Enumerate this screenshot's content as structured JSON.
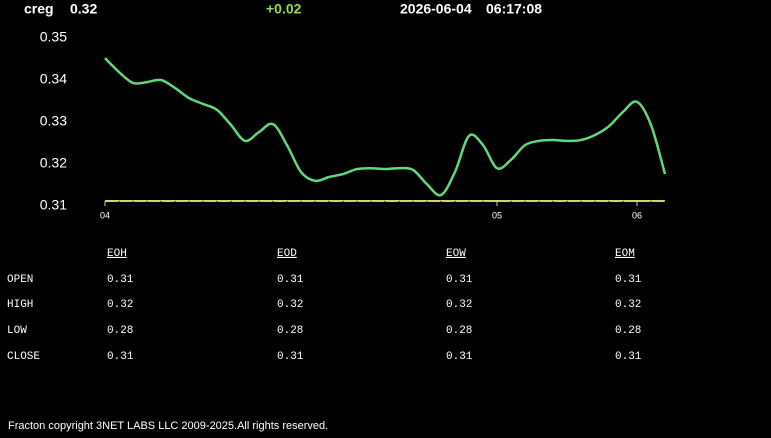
{
  "header": {
    "symbol": "creg",
    "price": "0.32",
    "change": "+0.02",
    "date": "2026-06-04",
    "time": "06:17:08"
  },
  "chart_data": {
    "type": "line",
    "color": "#5fd97a",
    "x": [
      0,
      1,
      2,
      3,
      4,
      5,
      6,
      7,
      8,
      9,
      10,
      11,
      12,
      13,
      14,
      15,
      16,
      17,
      18,
      19,
      20,
      21,
      22,
      23,
      24,
      25,
      26,
      27,
      28,
      29,
      30,
      31,
      32,
      33,
      34,
      35,
      36,
      37,
      38,
      39,
      40
    ],
    "values": [
      0.3452,
      0.3419,
      0.3393,
      0.3395,
      0.34,
      0.3381,
      0.3357,
      0.3343,
      0.3329,
      0.3293,
      0.3255,
      0.3276,
      0.3295,
      0.3245,
      0.3181,
      0.316,
      0.3169,
      0.3176,
      0.3188,
      0.319,
      0.3188,
      0.319,
      0.3186,
      0.3152,
      0.3126,
      0.3181,
      0.3267,
      0.3245,
      0.319,
      0.321,
      0.3245,
      0.3255,
      0.3257,
      0.3255,
      0.3257,
      0.3269,
      0.329,
      0.3324,
      0.3348,
      0.3293,
      0.3176
    ],
    "xlim": [
      0,
      40
    ],
    "xticks": [
      {
        "value": 0,
        "label": "04"
      },
      {
        "value": 28,
        "label": "05"
      },
      {
        "value": 38,
        "label": "06"
      }
    ],
    "ylim": [
      0.31,
      0.35
    ],
    "yticks": [
      0.35,
      0.34,
      0.33,
      0.32,
      0.31
    ],
    "reference_line": 0.3112,
    "reference_color": "#c8d86a"
  },
  "table": {
    "columns": [
      "EOH",
      "EOD",
      "EOW",
      "EOM"
    ],
    "rows": [
      [
        "OPEN",
        "0.31",
        "0.31",
        "0.31",
        "0.31"
      ],
      [
        "HIGH",
        "0.32",
        "0.32",
        "0.32",
        "0.32"
      ],
      [
        "LOW",
        "0.28",
        "0.28",
        "0.28",
        "0.28"
      ],
      [
        "CLOSE",
        "0.31",
        "0.31",
        "0.31",
        "0.31"
      ]
    ]
  },
  "footer": "Fracton copyright 3NET LABS LLC 2009-2025.All rights reserved."
}
